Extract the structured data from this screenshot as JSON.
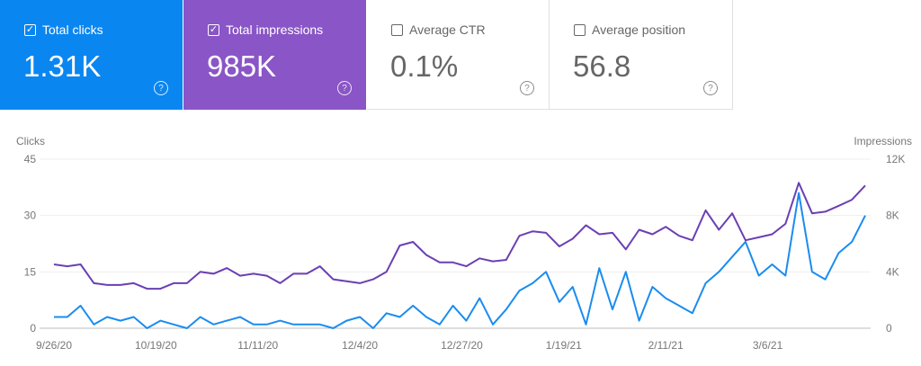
{
  "cards": [
    {
      "label": "Total clicks",
      "value": "1.31K",
      "checked": true,
      "color": "#0a86f1"
    },
    {
      "label": "Total impressions",
      "value": "985K",
      "checked": true,
      "color": "#8a55c6"
    },
    {
      "label": "Average CTR",
      "value": "0.1%",
      "checked": false
    },
    {
      "label": "Average position",
      "value": "56.8",
      "checked": false
    }
  ],
  "help_icon": "?",
  "check_icon": "✓",
  "chart_data": {
    "type": "line",
    "grid": true,
    "legend": "none",
    "y_left": {
      "label": "Clicks",
      "range": [
        0,
        45
      ],
      "ticks": [
        "0",
        "15",
        "30",
        "45"
      ]
    },
    "y_right": {
      "label": "Impressions",
      "range": [
        0,
        12000
      ],
      "ticks": [
        "0",
        "4K",
        "8K",
        "12K"
      ]
    },
    "x_ticks": [
      "9/26/20",
      "10/19/20",
      "11/11/20",
      "12/4/20",
      "12/27/20",
      "1/19/21",
      "2/11/21",
      "3/6/21"
    ],
    "x": [
      "9/26/20",
      "9/29/20",
      "10/2/20",
      "10/5/20",
      "10/8/20",
      "10/11/20",
      "10/14/20",
      "10/17/20",
      "10/20/20",
      "10/23/20",
      "10/26/20",
      "10/29/20",
      "11/1/20",
      "11/4/20",
      "11/7/20",
      "11/10/20",
      "11/13/20",
      "11/16/20",
      "11/19/20",
      "11/22/20",
      "11/25/20",
      "11/28/20",
      "12/1/20",
      "12/4/20",
      "12/7/20",
      "12/10/20",
      "12/13/20",
      "12/16/20",
      "12/19/20",
      "12/22/20",
      "12/25/20",
      "12/28/20",
      "12/31/20",
      "1/3/21",
      "1/6/21",
      "1/9/21",
      "1/12/21",
      "1/15/21",
      "1/18/21",
      "1/21/21",
      "1/24/21",
      "1/27/21",
      "1/30/21",
      "2/2/21",
      "2/5/21",
      "2/8/21",
      "2/11/21",
      "2/14/21",
      "2/17/21",
      "2/20/21",
      "2/23/21",
      "2/26/21",
      "3/1/21",
      "3/4/21",
      "3/7/21",
      "3/10/21",
      "3/13/21",
      "3/16/21",
      "3/19/21",
      "3/22/21",
      "3/25/21",
      "3/28/21"
    ],
    "series": [
      {
        "name": "Clicks",
        "axis": "left",
        "color": "#1a8cf0",
        "values": [
          3,
          3,
          6,
          1,
          3,
          2,
          3,
          0,
          2,
          1,
          0,
          3,
          1,
          2,
          3,
          1,
          1,
          2,
          1,
          1,
          1,
          0,
          2,
          3,
          0,
          4,
          3,
          6,
          3,
          1,
          6,
          2,
          8,
          1,
          5,
          10,
          12,
          15,
          7,
          11,
          1,
          16,
          5,
          15,
          2,
          11,
          8,
          6,
          4,
          12,
          15,
          19,
          23,
          14,
          17,
          14,
          36,
          15,
          13,
          20,
          23,
          30
        ]
      },
      {
        "name": "Impressions",
        "axis": "right",
        "color": "#6b3fb3",
        "values": [
          4530,
          4400,
          4530,
          3200,
          3070,
          3070,
          3200,
          2800,
          2800,
          3200,
          3200,
          4000,
          3870,
          4270,
          3730,
          3870,
          3730,
          3200,
          3870,
          3870,
          4400,
          3470,
          3330,
          3200,
          3470,
          4000,
          5870,
          6130,
          5200,
          4670,
          4670,
          4400,
          4960,
          4750,
          4850,
          6560,
          6880,
          6770,
          5810,
          6350,
          7310,
          6670,
          6770,
          5600,
          6990,
          6670,
          7200,
          6560,
          6240,
          8370,
          6990,
          8160,
          6240,
          6450,
          6670,
          7410,
          10320,
          8160,
          8270,
          8690,
          9120,
          10130
        ]
      }
    ]
  }
}
